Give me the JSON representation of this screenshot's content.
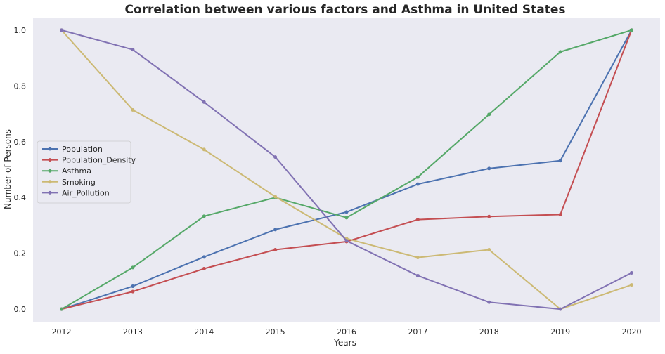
{
  "chart_data": {
    "type": "line",
    "title": "Correlation between various factors and Asthma in United States",
    "xlabel": "Years",
    "ylabel": "Number of Persons",
    "x": [
      "2012",
      "2013",
      "2014",
      "2015",
      "2016",
      "2017",
      "2018",
      "2019",
      "2020"
    ],
    "xlim": [
      2011.6,
      2020.4
    ],
    "ylim": [
      -0.045,
      1.045
    ],
    "yticks": [
      "0.0",
      "0.2",
      "0.4",
      "0.6",
      "0.8",
      "1.0"
    ],
    "grid": false,
    "legend_position": "center-left",
    "series": [
      {
        "name": "Population",
        "color": "#4c72b0",
        "values": [
          0.0,
          0.082,
          0.187,
          0.285,
          0.348,
          0.448,
          0.504,
          0.532,
          1.0
        ]
      },
      {
        "name": "Population_Density",
        "color": "#c44e52",
        "values": [
          0.0,
          0.063,
          0.145,
          0.213,
          0.242,
          0.321,
          0.332,
          0.339,
          1.0
        ]
      },
      {
        "name": "Asthma",
        "color": "#55a868",
        "values": [
          0.0,
          0.149,
          0.333,
          0.4,
          0.328,
          0.473,
          0.698,
          0.922,
          1.0
        ]
      },
      {
        "name": "Smoking",
        "color": "#ccb974",
        "values": [
          1.0,
          0.714,
          0.572,
          0.403,
          0.253,
          0.185,
          0.213,
          0.0,
          0.087
        ]
      },
      {
        "name": "Air_Pollution",
        "color": "#8172b3",
        "values": [
          1.0,
          0.93,
          0.742,
          0.545,
          0.245,
          0.12,
          0.025,
          0.0,
          0.13
        ]
      }
    ]
  }
}
